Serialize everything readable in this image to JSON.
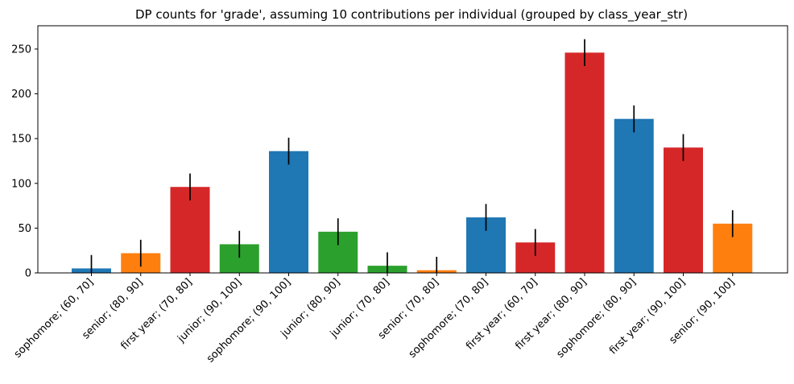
{
  "chart_data": {
    "type": "bar",
    "title": "DP counts for 'grade', assuming 10 contributions per individual (grouped by class_year_str)",
    "xlabel": "",
    "ylabel": "",
    "ylim": [
      0,
      276
    ],
    "yticks": [
      0,
      50,
      100,
      150,
      200,
      250
    ],
    "grid": false,
    "categories": [
      "sophomore; (60, 70]",
      "senior; (80, 90]",
      "first year; (70, 80]",
      "junior; (90, 100]",
      "sophomore; (90, 100]",
      "junior; (80, 90]",
      "junior; (70, 80]",
      "senior; (70, 80]",
      "sophomore; (70, 80]",
      "first year; (60, 70]",
      "first year; (80, 90]",
      "sophomore; (80, 90]",
      "first year; (90, 100]",
      "senior; (90, 100]"
    ],
    "values": [
      5,
      22,
      96,
      32,
      136,
      46,
      8,
      3,
      62,
      34,
      246,
      172,
      140,
      55
    ],
    "error": [
      15,
      15,
      15,
      15,
      15,
      15,
      15,
      15,
      15,
      15,
      15,
      15,
      15,
      15
    ],
    "colors": [
      "#1f77b4",
      "#ff7f0e",
      "#d62728",
      "#2ca02c",
      "#1f77b4",
      "#2ca02c",
      "#2ca02c",
      "#ff7f0e",
      "#1f77b4",
      "#d62728",
      "#d62728",
      "#1f77b4",
      "#d62728",
      "#ff7f0e"
    ]
  }
}
